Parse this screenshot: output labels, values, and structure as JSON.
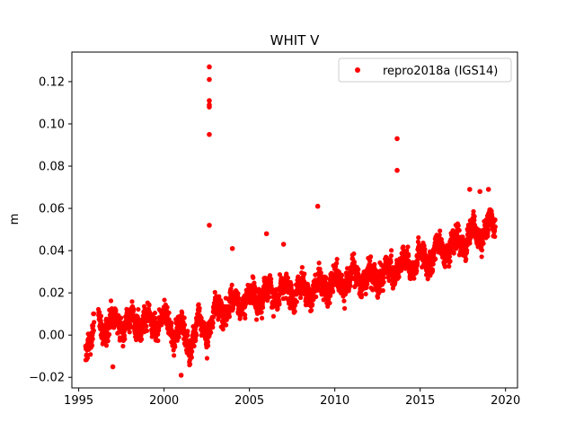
{
  "chart_data": {
    "type": "scatter",
    "title": "WHIT V",
    "xlabel": "",
    "ylabel": "m",
    "xlim": [
      1994.6,
      2020.7
    ],
    "ylim": [
      -0.025,
      0.134
    ],
    "x_ticks": [
      "1995",
      "2000",
      "2005",
      "2010",
      "2015",
      "2020"
    ],
    "y_ticks": [
      "−0.02",
      "0.00",
      "0.02",
      "0.04",
      "0.06",
      "0.08",
      "0.10",
      "0.12"
    ],
    "grid": false,
    "legend_position": "upper right",
    "colors": {
      "series": "#ff0000",
      "axes": "#000000",
      "background": "#ffffff"
    },
    "series": [
      {
        "name": "repro2018a (IGS14)",
        "marker": "circle",
        "trend": [
          [
            1995.4,
            -0.004
          ],
          [
            1996.0,
            0.004
          ],
          [
            1997.0,
            0.006
          ],
          [
            1998.0,
            0.006
          ],
          [
            1999.0,
            0.006
          ],
          [
            2000.0,
            0.007
          ],
          [
            2000.5,
            0.003
          ],
          [
            2001.0,
            0.002
          ],
          [
            2001.5,
            -0.004
          ],
          [
            2002.0,
            0.004
          ],
          [
            2002.5,
            0.002
          ],
          [
            2003.0,
            0.01
          ],
          [
            2004.0,
            0.014
          ],
          [
            2005.0,
            0.017
          ],
          [
            2006.0,
            0.019
          ],
          [
            2007.0,
            0.021
          ],
          [
            2008.0,
            0.02
          ],
          [
            2009.0,
            0.022
          ],
          [
            2010.0,
            0.025
          ],
          [
            2011.0,
            0.027
          ],
          [
            2012.0,
            0.027
          ],
          [
            2013.0,
            0.029
          ],
          [
            2014.0,
            0.033
          ],
          [
            2015.0,
            0.035
          ],
          [
            2016.0,
            0.039
          ],
          [
            2017.0,
            0.043
          ],
          [
            2018.0,
            0.046
          ],
          [
            2019.0,
            0.051
          ],
          [
            2019.4,
            0.053
          ]
        ],
        "outliers": [
          [
            2002.65,
            0.127
          ],
          [
            2002.65,
            0.121
          ],
          [
            2002.65,
            0.111
          ],
          [
            2002.65,
            0.109
          ],
          [
            2002.65,
            0.108
          ],
          [
            2002.65,
            0.095
          ],
          [
            2002.65,
            0.052
          ],
          [
            2013.65,
            0.093
          ],
          [
            2013.65,
            0.078
          ],
          [
            2009.0,
            0.061
          ],
          [
            2006.0,
            0.048
          ],
          [
            2007.0,
            0.043
          ],
          [
            2004.0,
            0.041
          ],
          [
            2017.9,
            0.069
          ],
          [
            2019.0,
            0.069
          ],
          [
            1997.0,
            -0.015
          ],
          [
            2001.0,
            -0.019
          ],
          [
            2018.5,
            0.068
          ]
        ]
      }
    ]
  }
}
